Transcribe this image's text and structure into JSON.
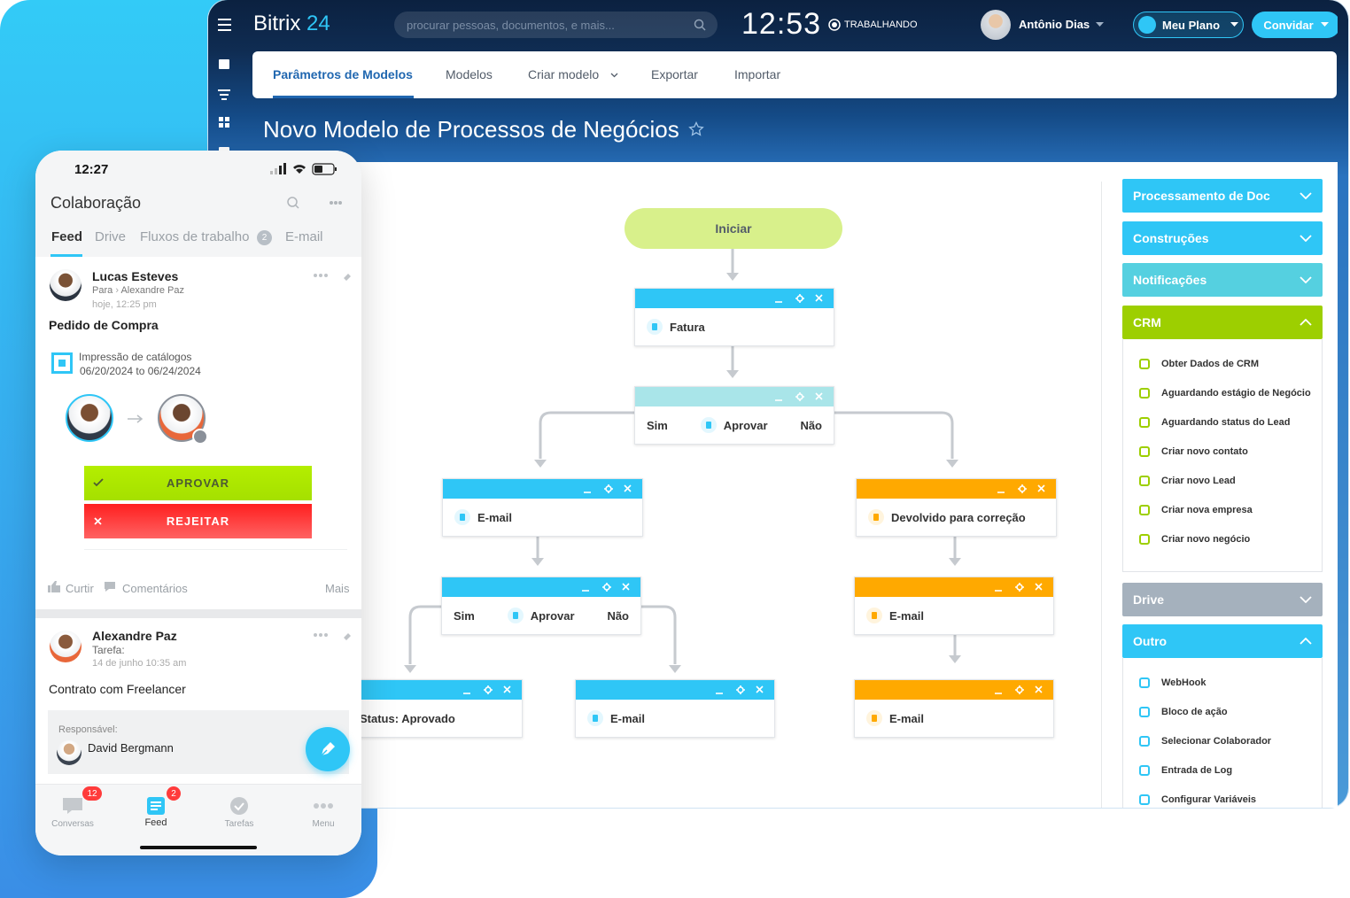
{
  "header": {
    "brand": "Bitrix",
    "brand_number": "24",
    "search_placeholder": "procurar pessoas, documentos, e mais...",
    "clock": "12:53",
    "status": "TRABALHANDO",
    "user": "Antônio Dias",
    "plan_button": "Meu Plano",
    "invite_button": "Convidar"
  },
  "tabs": [
    "Parâmetros de Modelos",
    "Modelos",
    "Criar modelo",
    "Exportar",
    "Importar"
  ],
  "page_title": "Novo Modelo de Processos de Negócios",
  "flow": {
    "start": "Iniciar",
    "nodes": [
      {
        "label": "Fatura",
        "color": "#2fc6f6"
      },
      {
        "label": "Aprovar",
        "yes": "Sim",
        "no": "Não",
        "color": "#a9e5e9"
      },
      {
        "label": "E-mail",
        "color": "#2fc6f6"
      },
      {
        "label": "Devolvido para correção",
        "color": "#ffa900"
      },
      {
        "label": "Aprovar",
        "yes": "Sim",
        "no": "Não",
        "color": "#2fc6f6"
      },
      {
        "label": "E-mail",
        "color": "#ffa900"
      },
      {
        "label": "Status: Aprovado",
        "color": "#2fc6f6"
      },
      {
        "label": "E-mail",
        "color": "#2fc6f6"
      },
      {
        "label": "E-mail",
        "color": "#ffa900"
      }
    ]
  },
  "sidebar": [
    {
      "title": "Processamento de Doc",
      "color": "#2fc6f6"
    },
    {
      "title": "Construções",
      "color": "#2fc6f6"
    },
    {
      "title": "Notificações",
      "color": "#55d0e0"
    },
    {
      "title": "CRM",
      "color": "#9dcf00",
      "items": [
        "Obter Dados de CRM",
        "Aguardando estágio de Negócio",
        "Aguardando status do Lead",
        "Criar novo contato",
        "Criar novo Lead",
        "Criar nova empresa",
        "Criar novo negócio"
      ]
    },
    {
      "title": "Drive",
      "color": "#a5b1bd"
    },
    {
      "title": "Outro",
      "color": "#2fc6f6",
      "items": [
        "WebHook",
        "Bloco de ação",
        "Selecionar Colaborador",
        "Entrada de Log",
        "Configurar Variáveis"
      ]
    }
  ],
  "mobile": {
    "clock": "12:27",
    "title": "Colaboração",
    "tabs": [
      {
        "label": "Feed"
      },
      {
        "label": "Drive"
      },
      {
        "label": "Fluxos de trabalho",
        "badge": 2
      },
      {
        "label": "E-mail"
      }
    ],
    "posts": [
      {
        "author": "Lucas Esteves",
        "to_label": "Para",
        "to": "Alexandre Paz",
        "time": "hoje, 12:25 pm",
        "title": "Pedido de Compra",
        "event": "Impressão de catálogos",
        "dates": "06/20/2024 to 06/24/2024",
        "approve": "APROVAR",
        "reject": "REJEITAR",
        "like": "Curtir",
        "comments": "Comentários",
        "more": "Mais"
      },
      {
        "author": "Alexandre Paz",
        "subtitle": "Tarefa:",
        "time": "14 de junho 10:35 am",
        "title": "Contrato com Freelancer",
        "responsible_label": "Responsável:",
        "responsible": "David Bergmann"
      }
    ],
    "nav": [
      {
        "label": "Conversas",
        "badge": 12
      },
      {
        "label": "Feed",
        "badge": 2
      },
      {
        "label": "Tarefas"
      },
      {
        "label": "Menu"
      }
    ]
  }
}
